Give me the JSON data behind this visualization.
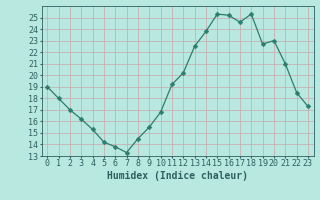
{
  "x": [
    0,
    1,
    2,
    3,
    4,
    5,
    6,
    7,
    8,
    9,
    10,
    11,
    12,
    13,
    14,
    15,
    16,
    17,
    18,
    19,
    20,
    21,
    22,
    23
  ],
  "y": [
    19.0,
    18.0,
    17.0,
    16.2,
    15.3,
    14.2,
    13.8,
    13.3,
    14.5,
    15.5,
    16.8,
    19.2,
    20.2,
    22.5,
    23.8,
    25.3,
    25.2,
    24.6,
    25.3,
    22.7,
    23.0,
    21.0,
    18.5,
    17.3
  ],
  "line_color": "#2d7d6e",
  "marker": "D",
  "marker_size": 2.5,
  "bg_color": "#b8e8e0",
  "grid_color": "#c8a8a8",
  "xlabel": "Humidex (Indice chaleur)",
  "xlabel_fontsize": 7,
  "tick_fontsize": 6,
  "ylim": [
    13,
    26
  ],
  "yticks": [
    13,
    14,
    15,
    16,
    17,
    18,
    19,
    20,
    21,
    22,
    23,
    24,
    25
  ],
  "xticks": [
    0,
    1,
    2,
    3,
    4,
    5,
    6,
    7,
    8,
    9,
    10,
    11,
    12,
    13,
    14,
    15,
    16,
    17,
    18,
    19,
    20,
    21,
    22,
    23
  ],
  "tick_color": "#2d6060",
  "spine_color": "#2d6060"
}
